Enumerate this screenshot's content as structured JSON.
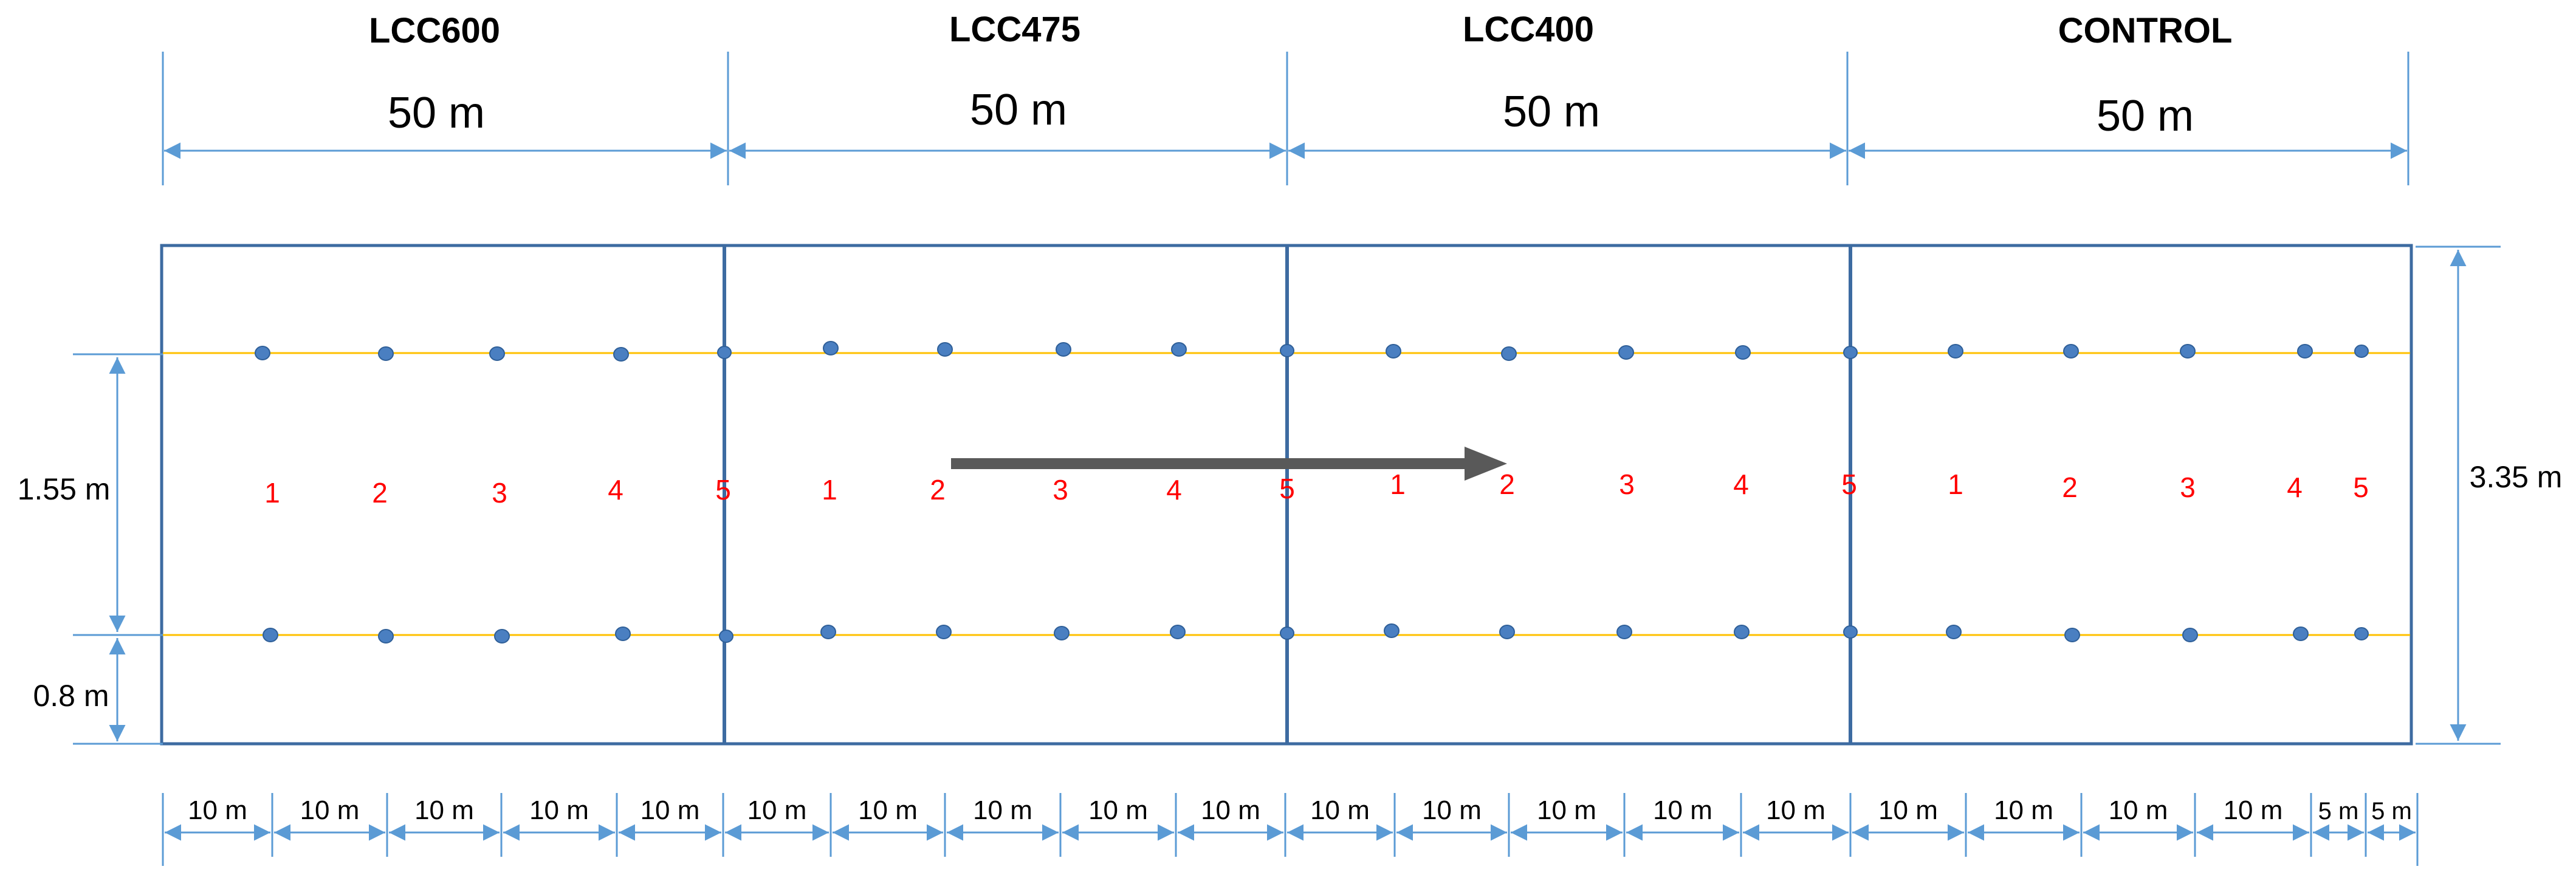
{
  "sections": [
    {
      "title": "LCC600",
      "length": "50 m",
      "labels": [
        "1",
        "2",
        "3",
        "4",
        "5"
      ]
    },
    {
      "title": "LCC475",
      "length": "50 m",
      "labels": [
        "1",
        "2",
        "3",
        "4",
        "5"
      ]
    },
    {
      "title": "LCC400",
      "length": "50 m",
      "labels": [
        "1",
        "2",
        "3",
        "4",
        "5"
      ]
    },
    {
      "title": "CONTROL",
      "length": "50 m",
      "labels": [
        "1",
        "2",
        "3",
        "4",
        "5"
      ]
    }
  ],
  "dimensions": {
    "row_spacing": "1.55 m",
    "edge_offset": "0.8 m",
    "plot_width": "3.35 m"
  },
  "bottom_segments": [
    "10 m",
    "10 m",
    "10 m",
    "10 m",
    "10 m",
    "10 m",
    "10 m",
    "10 m",
    "10 m",
    "10 m",
    "10 m",
    "10 m",
    "10 m",
    "10 m",
    "10 m",
    "10 m",
    "10 m",
    "10 m",
    "10 m",
    "5 m",
    "5 m"
  ],
  "colors": {
    "outline": "#3d6ba1",
    "dimension_line": "#5b9bd5",
    "row_line": "#ffc000",
    "sample_point": "#4a7fc1",
    "point_label": "#ff0000",
    "flow_arrow": "#595959",
    "text": "#000000"
  }
}
